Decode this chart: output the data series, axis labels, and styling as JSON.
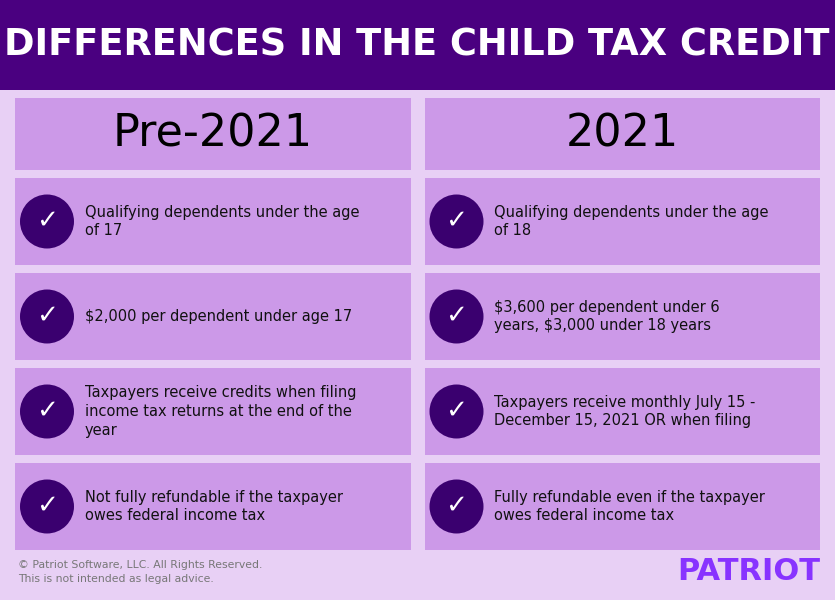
{
  "title": "DIFFERENCES IN THE CHILD TAX CREDIT",
  "title_bg": "#4a0080",
  "title_color": "#ffffff",
  "body_bg": "#e8d0f5",
  "card_bg": "#cc99e8",
  "check_circle_color": "#3a006f",
  "check_color": "#ffffff",
  "col1_header": "Pre-2021",
  "col2_header": "2021",
  "header_bg": "#cc99e8",
  "header_text_color": "#000000",
  "footer_left1": "© Patriot Software, LLC. All Rights Reserved.",
  "footer_left2": "This is not intended as legal advice.",
  "footer_right": "PATRIOT",
  "footer_right_color": "#8833ff",
  "footer_text_color": "#777777",
  "col1_items": [
    "Qualifying dependents under the age\nof 17",
    "$2,000 per dependent under age 17",
    "Taxpayers receive credits when filing\nincome tax returns at the end of the\nyear",
    "Not fully refundable if the taxpayer\nowes federal income tax"
  ],
  "col2_items": [
    "Qualifying dependents under the age\nof 18",
    "$3,600 per dependent under 6\nyears, $3,000 under 18 years",
    "Taxpayers receive monthly July 15 -\nDecember 15, 2021 OR when filing",
    "Fully refundable even if the taxpayer\nowes federal income tax"
  ]
}
